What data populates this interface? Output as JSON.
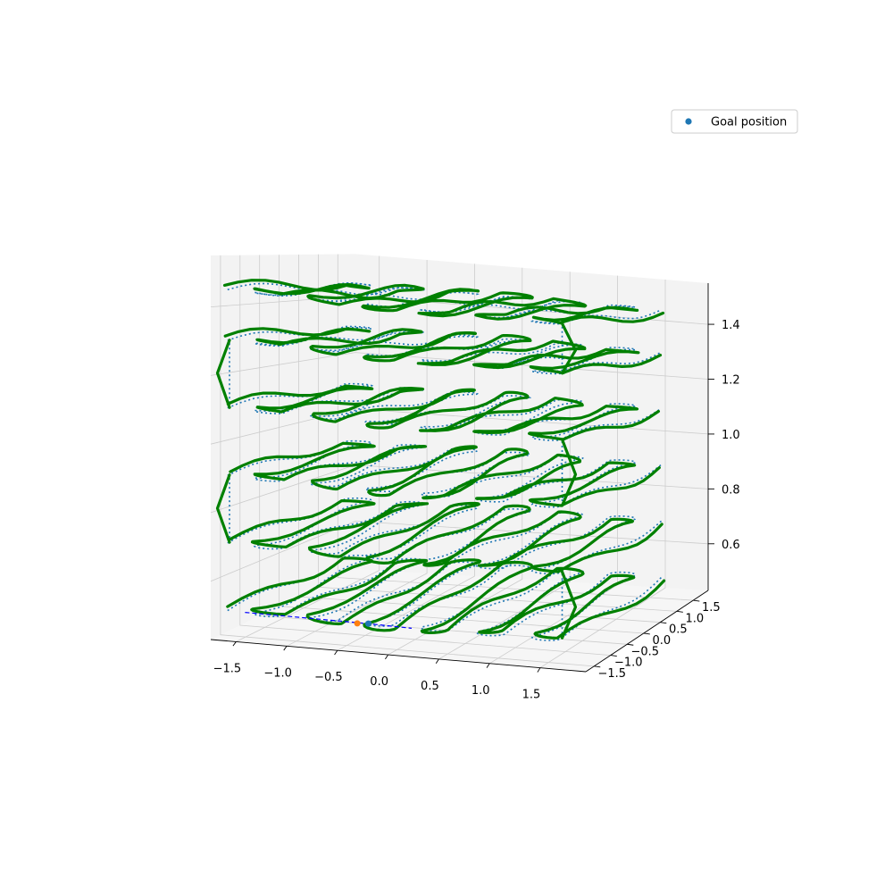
{
  "chart_data": {
    "type": "line",
    "projection": "3d",
    "title": "",
    "xlabel": "",
    "ylabel": "",
    "zlabel": "",
    "xlim": [
      -1.75,
      1.95
    ],
    "ylim": [
      -1.75,
      1.95
    ],
    "zlim": [
      0.43,
      1.55
    ],
    "x_ticks": [
      -1.5,
      -1.0,
      -0.5,
      0.0,
      0.5,
      1.0,
      1.5
    ],
    "x_tick_labels": [
      "−1.5",
      "−1.0",
      "−0.5",
      "0.0",
      "0.5",
      "1.0",
      "1.5"
    ],
    "y_ticks": [
      -1.5,
      -1.0,
      -0.5,
      0.0,
      0.5,
      1.0,
      1.5
    ],
    "y_tick_labels": [
      "−1.5",
      "−1.0",
      "−0.5",
      "0.0",
      "0.5",
      "1.0",
      "1.5"
    ],
    "z_ticks": [
      0.6,
      0.8,
      1.0,
      1.2,
      1.4
    ],
    "z_tick_labels": [
      "0.6",
      "0.8",
      "1.0",
      "1.2",
      "1.4"
    ],
    "grid": true,
    "legend": {
      "placement": "top-right",
      "entries": [
        "Goal position"
      ]
    },
    "layers_z": [
      0.5,
      0.7,
      0.9,
      1.1,
      1.3,
      1.45
    ],
    "lawnmower_x_range": [
      -1.7,
      1.6
    ],
    "lawnmower_sweeps": 12,
    "series": [
      {
        "name": "Goal position",
        "type": "scatter",
        "color": "#1f77b4",
        "points": [
          [
            -0.45,
            -1.05,
            0.47
          ]
        ]
      },
      {
        "type": "line",
        "style": "dotted",
        "color": "#1f77b4",
        "description_key": "reference_path"
      },
      {
        "type": "line",
        "style": "solid",
        "color": "#008000",
        "description_key": "flown_path"
      },
      {
        "type": "line",
        "style": "dashed",
        "color": "#0000ff",
        "points": [
          [
            -1.7,
            -1.0,
            0.47
          ],
          [
            -0.45,
            -1.05,
            0.47
          ],
          [
            0.0,
            -1.1,
            0.47
          ]
        ]
      },
      {
        "type": "scatter",
        "color": "#ff7f0e",
        "points": [
          [
            -0.55,
            -1.08,
            0.47
          ]
        ]
      }
    ],
    "colors": {
      "flown": "#008000",
      "reference": "#1f77b4",
      "goal": "#1f77b4",
      "start": "#ff7f0e",
      "dashed": "#0000ff"
    }
  }
}
